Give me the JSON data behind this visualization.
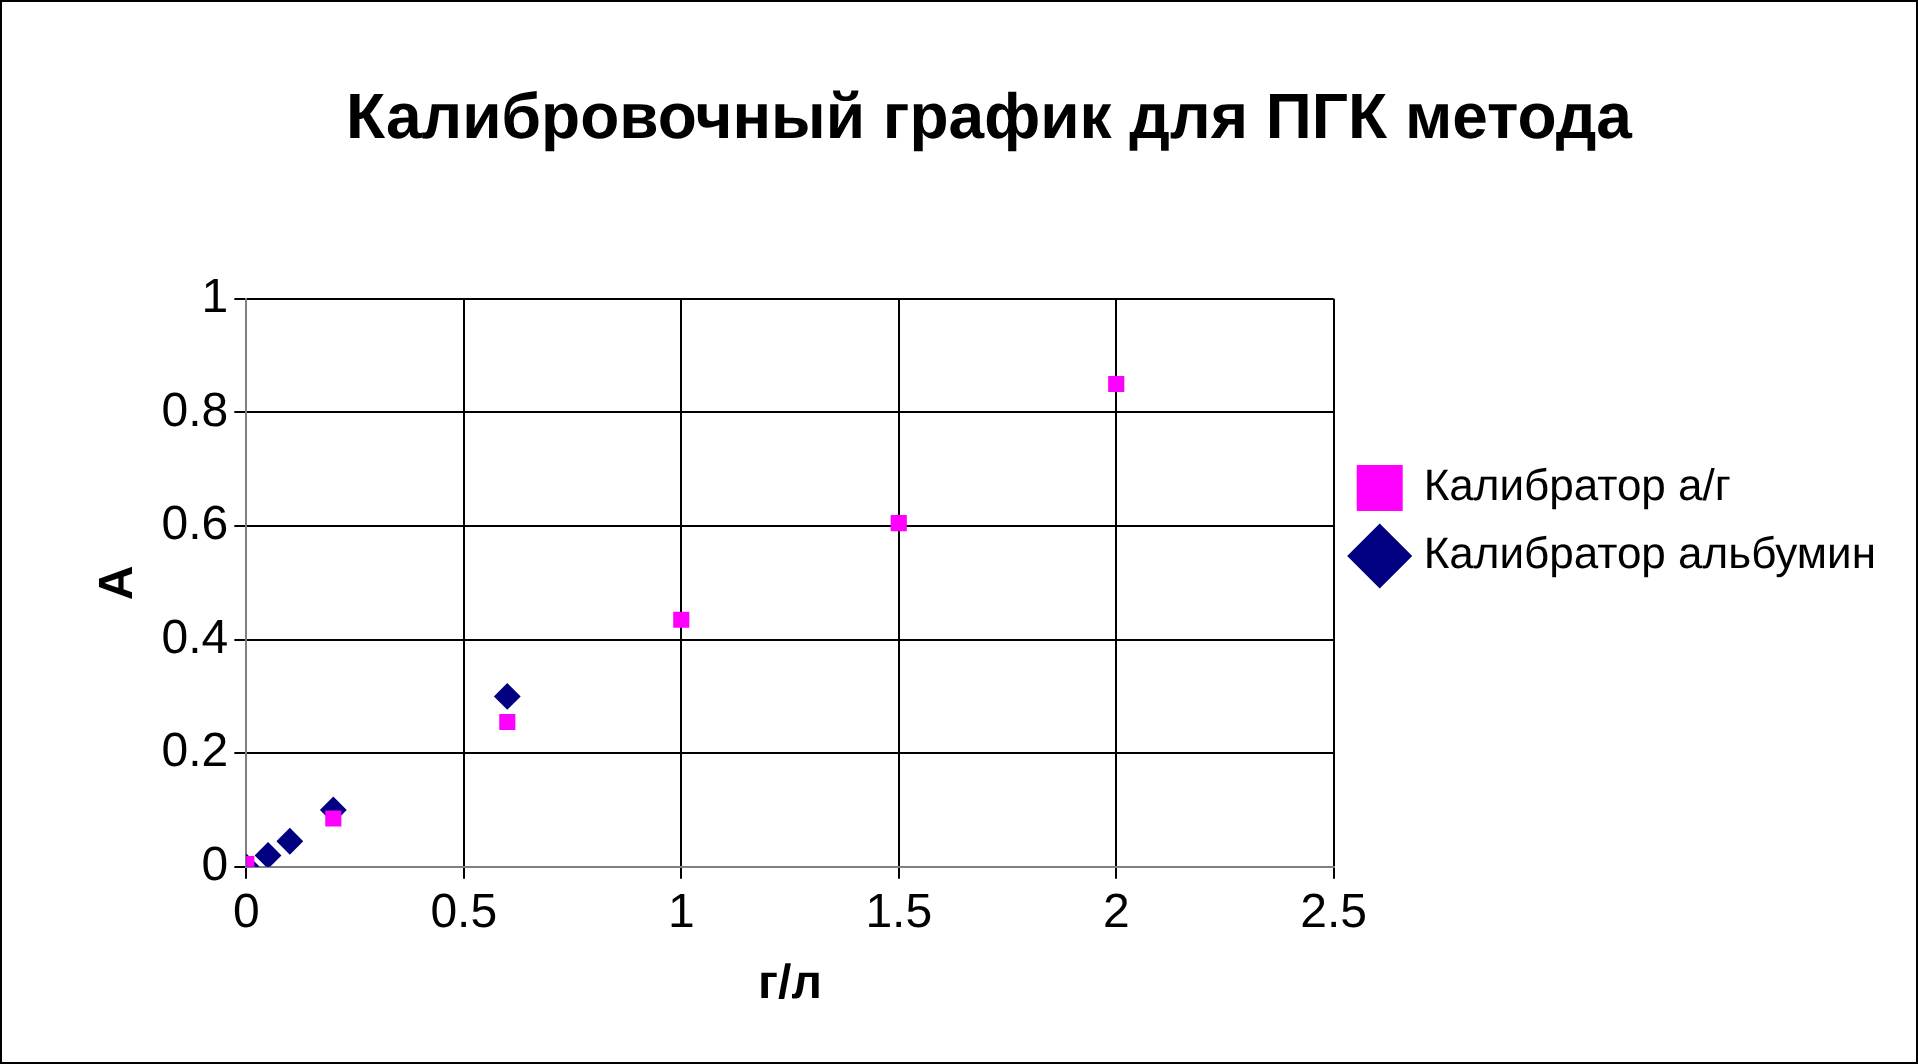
{
  "chart_data": {
    "type": "scatter",
    "title": "Калибровочный график для ПГК метода",
    "xlabel": "г/л",
    "ylabel": "А",
    "xlim": [
      0,
      2.5
    ],
    "xticks": [
      0,
      0.5,
      1,
      1.5,
      2,
      2.5
    ],
    "ylim": [
      0,
      1
    ],
    "yticks": [
      0,
      0.2,
      0.4,
      0.6,
      0.8,
      1
    ],
    "grid": true,
    "legend": "right",
    "series": [
      {
        "name": "Калибратор альбумин",
        "color": "#000080",
        "marker": "diamond",
        "x": [
          0,
          0.05,
          0.1,
          0.2,
          0.6
        ],
        "values": [
          0,
          0.02,
          0.045,
          0.1,
          0.3
        ]
      },
      {
        "name": "Калибратор а/г",
        "color": "#ff00ff",
        "marker": "square",
        "x": [
          0,
          0.2,
          0.6,
          1,
          1.5,
          2
        ],
        "values": [
          0.005,
          0.085,
          0.255,
          0.435,
          0.605,
          0.85
        ]
      }
    ]
  }
}
